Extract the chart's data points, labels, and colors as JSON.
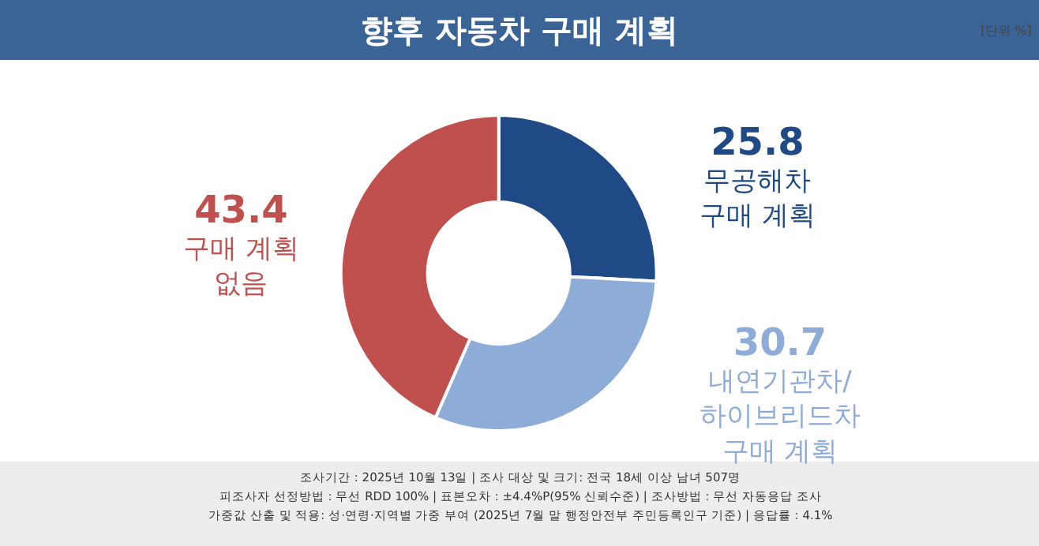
{
  "chart_data": {
    "type": "donut",
    "title": "향후 자동차 구매 계획",
    "categories": [
      "무공해차\n구매 계획",
      "내연기관차/\n하이브리드차\n구매 계획",
      "구매 계획\n없음"
    ],
    "values": [
      25.8,
      30.7,
      43.4
    ],
    "colors": [
      "#1f4a85",
      "#8eacd8",
      "#c0504d"
    ],
    "data_labels": true,
    "legend": false,
    "annotations": [
      "[단위 %]",
      "조사기간 : 2025년 10월 13일 | 조사 대상 및 크기: 전국 18세 이상 남녀 507명",
      "피조사자 선정방법 : 무선 RDD 100% | 표본오차 : ±4.4%P(95% 신뢰수준) | 조사방법 : 무선 자동응답 조사",
      "가중값 산출 및 적용: 성·연령·지역별 가중 부여 (2025년 7월 말 행정안전부 주민등록인구 기준) | 응답률 : 4.1%"
    ]
  }
}
